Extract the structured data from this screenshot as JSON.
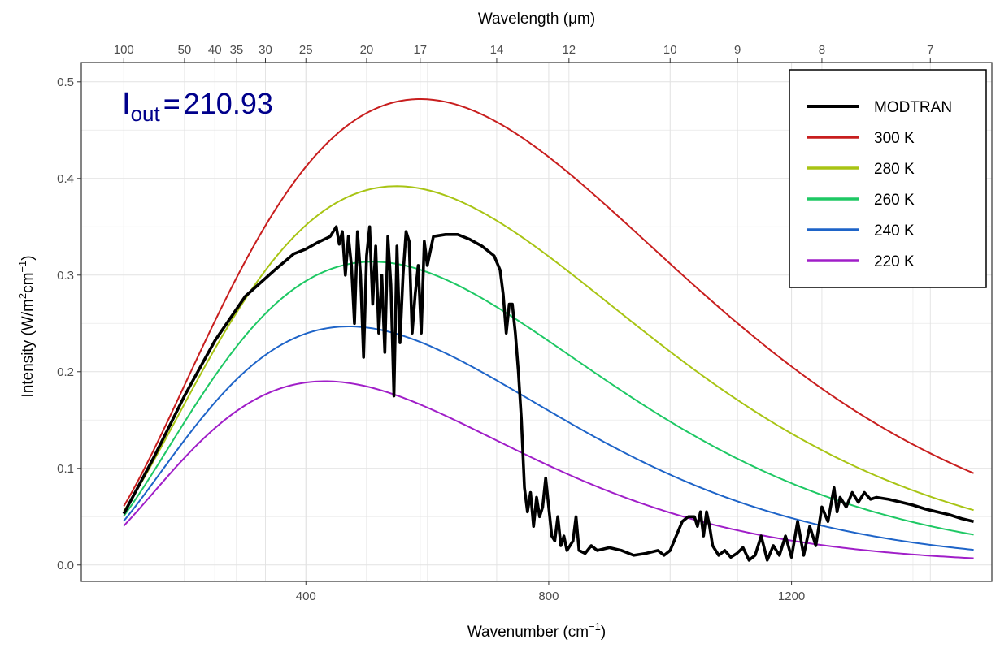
{
  "chart_data": {
    "type": "line",
    "annotation": {
      "symbol": "I",
      "subscript": "out",
      "equals": "=",
      "value": "210.93",
      "color": "#00008b"
    },
    "xlabel": {
      "text": "Wavenumber (cm",
      "sup": "−1",
      "close": ")"
    },
    "ylabel": {
      "text": "Intensity (W/m",
      "sup1": "2",
      "mid": "cm",
      "sup2": "−1",
      "close": ")"
    },
    "top_axis_label": {
      "text": "Wavelength (",
      "mu": "μ",
      "unit": "m)"
    },
    "xlim": [
      30,
      1530
    ],
    "ylim": [
      -0.017,
      0.52
    ],
    "x_ticks": [
      400,
      800,
      1200
    ],
    "x_minor_ticks": [
      200,
      600,
      1000,
      1400
    ],
    "y_ticks": [
      0.0,
      0.1,
      0.2,
      0.3,
      0.4,
      0.5
    ],
    "y_tick_labels": [
      "0.0",
      "0.1",
      "0.2",
      "0.3",
      "0.4",
      "0.5"
    ],
    "top_ticks": [
      {
        "label": "100",
        "wavelength": 100
      },
      {
        "label": "50",
        "wavelength": 50
      },
      {
        "label": "40",
        "wavelength": 40
      },
      {
        "label": "35",
        "wavelength": 35
      },
      {
        "label": "30",
        "wavelength": 30
      },
      {
        "label": "25",
        "wavelength": 25
      },
      {
        "label": "20",
        "wavelength": 20
      },
      {
        "label": "17",
        "wavelength": 17
      },
      {
        "label": "14",
        "wavelength": 14
      },
      {
        "label": "12",
        "wavelength": 12
      },
      {
        "label": "10",
        "wavelength": 10
      },
      {
        "label": "9",
        "wavelength": 9
      },
      {
        "label": "8",
        "wavelength": 8
      },
      {
        "label": "7",
        "wavelength": 7
      }
    ],
    "grid": true,
    "legend_position": "top-right",
    "series": [
      {
        "name": "MODTRAN",
        "color": "#000000",
        "type": "spectrum",
        "points": [
          [
            100,
            0.053
          ],
          [
            150,
            0.112
          ],
          [
            200,
            0.175
          ],
          [
            250,
            0.232
          ],
          [
            300,
            0.278
          ],
          [
            350,
            0.306
          ],
          [
            380,
            0.322
          ],
          [
            400,
            0.327
          ],
          [
            420,
            0.334
          ],
          [
            440,
            0.34
          ],
          [
            450,
            0.35
          ],
          [
            455,
            0.332
          ],
          [
            460,
            0.345
          ],
          [
            465,
            0.3
          ],
          [
            470,
            0.34
          ],
          [
            475,
            0.31
          ],
          [
            480,
            0.25
          ],
          [
            485,
            0.345
          ],
          [
            490,
            0.3
          ],
          [
            495,
            0.215
          ],
          [
            500,
            0.32
          ],
          [
            505,
            0.35
          ],
          [
            510,
            0.27
          ],
          [
            515,
            0.33
          ],
          [
            520,
            0.24
          ],
          [
            525,
            0.3
          ],
          [
            530,
            0.22
          ],
          [
            535,
            0.34
          ],
          [
            540,
            0.29
          ],
          [
            545,
            0.175
          ],
          [
            550,
            0.33
          ],
          [
            555,
            0.23
          ],
          [
            560,
            0.3
          ],
          [
            565,
            0.345
          ],
          [
            570,
            0.335
          ],
          [
            575,
            0.24
          ],
          [
            580,
            0.28
          ],
          [
            585,
            0.31
          ],
          [
            590,
            0.24
          ],
          [
            595,
            0.335
          ],
          [
            600,
            0.31
          ],
          [
            610,
            0.34
          ],
          [
            630,
            0.342
          ],
          [
            650,
            0.342
          ],
          [
            670,
            0.337
          ],
          [
            690,
            0.33
          ],
          [
            710,
            0.32
          ],
          [
            720,
            0.305
          ],
          [
            725,
            0.28
          ],
          [
            730,
            0.24
          ],
          [
            735,
            0.27
          ],
          [
            740,
            0.27
          ],
          [
            745,
            0.24
          ],
          [
            750,
            0.2
          ],
          [
            755,
            0.15
          ],
          [
            760,
            0.08
          ],
          [
            765,
            0.055
          ],
          [
            770,
            0.075
          ],
          [
            775,
            0.04
          ],
          [
            780,
            0.07
          ],
          [
            785,
            0.05
          ],
          [
            790,
            0.06
          ],
          [
            795,
            0.09
          ],
          [
            800,
            0.06
          ],
          [
            805,
            0.03
          ],
          [
            810,
            0.025
          ],
          [
            815,
            0.05
          ],
          [
            820,
            0.02
          ],
          [
            825,
            0.03
          ],
          [
            830,
            0.015
          ],
          [
            840,
            0.025
          ],
          [
            845,
            0.05
          ],
          [
            850,
            0.015
          ],
          [
            860,
            0.012
          ],
          [
            870,
            0.02
          ],
          [
            880,
            0.015
          ],
          [
            900,
            0.018
          ],
          [
            920,
            0.015
          ],
          [
            940,
            0.01
          ],
          [
            960,
            0.012
          ],
          [
            980,
            0.015
          ],
          [
            990,
            0.01
          ],
          [
            1000,
            0.015
          ],
          [
            1010,
            0.03
          ],
          [
            1020,
            0.045
          ],
          [
            1030,
            0.05
          ],
          [
            1040,
            0.05
          ],
          [
            1045,
            0.04
          ],
          [
            1050,
            0.055
          ],
          [
            1055,
            0.03
          ],
          [
            1060,
            0.055
          ],
          [
            1065,
            0.04
          ],
          [
            1070,
            0.02
          ],
          [
            1080,
            0.01
          ],
          [
            1090,
            0.015
          ],
          [
            1100,
            0.008
          ],
          [
            1110,
            0.012
          ],
          [
            1120,
            0.018
          ],
          [
            1130,
            0.005
          ],
          [
            1140,
            0.01
          ],
          [
            1150,
            0.03
          ],
          [
            1160,
            0.005
          ],
          [
            1170,
            0.02
          ],
          [
            1180,
            0.01
          ],
          [
            1190,
            0.03
          ],
          [
            1200,
            0.008
          ],
          [
            1210,
            0.045
          ],
          [
            1220,
            0.01
          ],
          [
            1230,
            0.04
          ],
          [
            1240,
            0.02
          ],
          [
            1250,
            0.06
          ],
          [
            1260,
            0.045
          ],
          [
            1270,
            0.08
          ],
          [
            1275,
            0.055
          ],
          [
            1280,
            0.07
          ],
          [
            1290,
            0.06
          ],
          [
            1300,
            0.075
          ],
          [
            1310,
            0.065
          ],
          [
            1320,
            0.075
          ],
          [
            1330,
            0.068
          ],
          [
            1340,
            0.07
          ],
          [
            1360,
            0.068
          ],
          [
            1380,
            0.065
          ],
          [
            1400,
            0.062
          ],
          [
            1420,
            0.058
          ],
          [
            1440,
            0.055
          ],
          [
            1460,
            0.052
          ],
          [
            1480,
            0.048
          ],
          [
            1500,
            0.045
          ]
        ]
      },
      {
        "name": "300 K",
        "color": "#c81e1e",
        "temperature": 300
      },
      {
        "name": "280 K",
        "color": "#a8c414",
        "temperature": 280
      },
      {
        "name": "260 K",
        "color": "#1ec864",
        "temperature": 260
      },
      {
        "name": "240 K",
        "color": "#1e64c8",
        "temperature": 240
      },
      {
        "name": "220 K",
        "color": "#a01ec8",
        "temperature": 220
      }
    ]
  }
}
